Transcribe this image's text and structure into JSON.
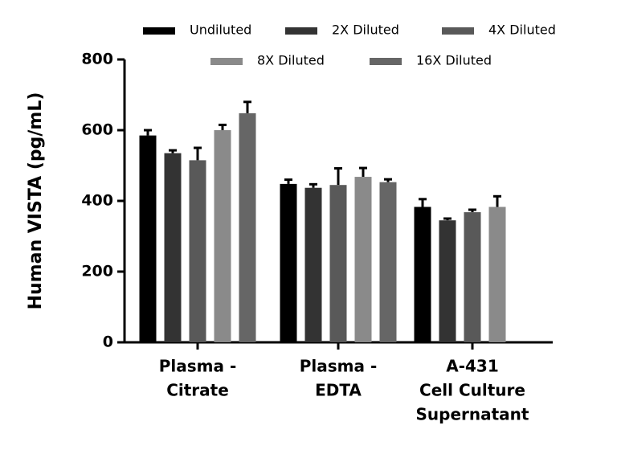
{
  "chart_data": {
    "type": "bar",
    "y_label": "Human VISTA (pg/mL)",
    "categories": [
      [
        "Plasma -",
        "Citrate"
      ],
      [
        "Plasma -",
        "EDTA"
      ],
      [
        "A-431",
        "Cell Culture",
        "Supernatant"
      ]
    ],
    "series": [
      {
        "name": "Undiluted",
        "color": "#000000",
        "values": [
          585,
          448,
          383
        ],
        "errors": [
          15,
          12,
          22
        ]
      },
      {
        "name": "2X Diluted",
        "color": "#333333",
        "values": [
          535,
          437,
          345
        ],
        "errors": [
          8,
          10,
          5
        ]
      },
      {
        "name": "4X Diluted",
        "color": "#595959",
        "values": [
          515,
          445,
          368
        ],
        "errors": [
          35,
          47,
          7
        ]
      },
      {
        "name": "8X Diluted",
        "color": "#8a8a8a",
        "values": [
          600,
          468,
          383
        ],
        "errors": [
          15,
          25,
          30
        ]
      },
      {
        "name": "16X Diluted",
        "color": "#666666",
        "values": [
          648,
          453,
          null
        ],
        "errors": [
          32,
          8,
          null
        ]
      }
    ],
    "ylim": [
      0,
      800
    ],
    "yticks": [
      0,
      200,
      400,
      600,
      800
    ]
  }
}
